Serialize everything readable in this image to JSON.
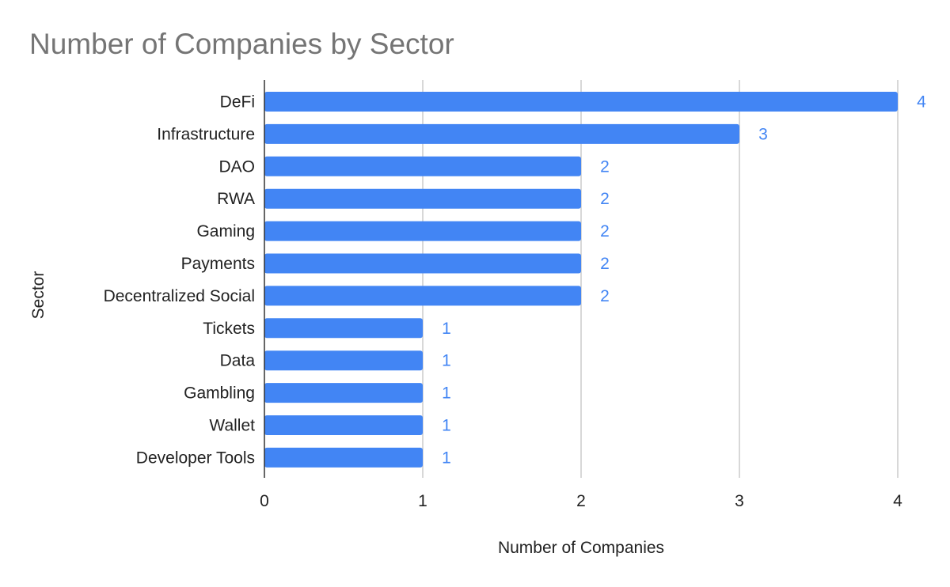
{
  "chart_data": {
    "type": "bar",
    "orientation": "horizontal",
    "title": "Number of Companies by Sector",
    "xlabel": "Number of Companies",
    "ylabel": "Sector",
    "categories": [
      "DeFi",
      "Infrastructure",
      "DAO",
      "RWA",
      "Gaming",
      "Payments",
      "Decentralized Social",
      "Tickets",
      "Data",
      "Gambling",
      "Wallet",
      "Developer Tools"
    ],
    "values": [
      4,
      3,
      2,
      2,
      2,
      2,
      2,
      1,
      1,
      1,
      1,
      1
    ],
    "xlim": [
      0,
      4
    ],
    "x_ticks": [
      "0",
      "1",
      "2",
      "3",
      "4"
    ],
    "grid": "vertical gridlines",
    "legend": "none",
    "data_labels": true,
    "colors": {
      "bar": "#4285f4",
      "data_label": "#4285f4",
      "gridline": "#cccccc",
      "axis_line": "#333333",
      "title": "#757575",
      "text": "#222222"
    }
  }
}
